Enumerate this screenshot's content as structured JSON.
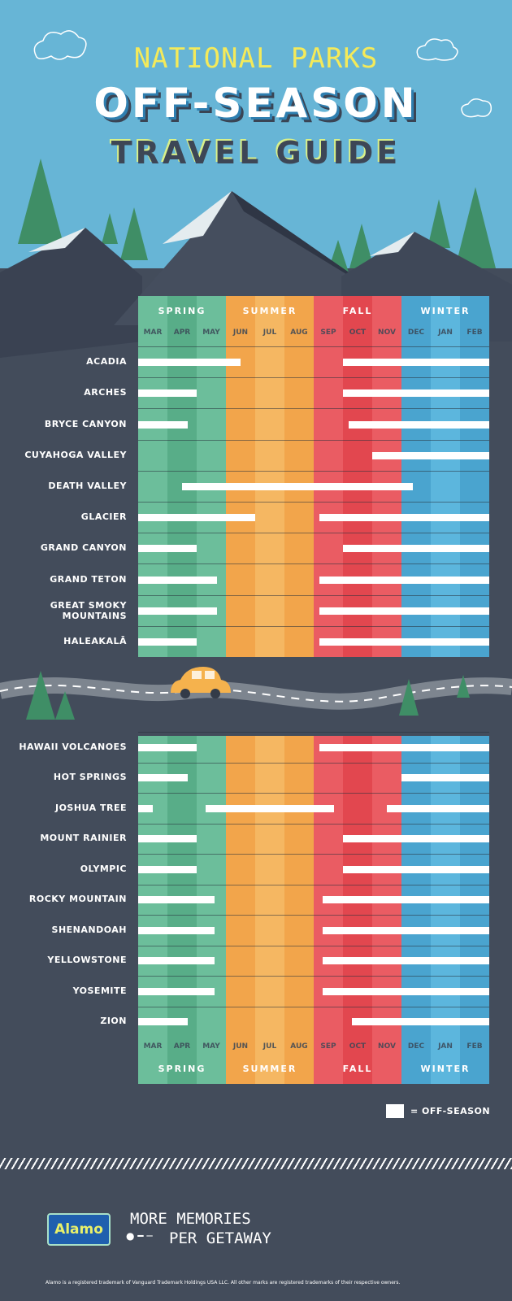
{
  "title": {
    "line1": "NATIONAL PARKS",
    "line2": "OFF-SEASON",
    "line3": "TRAVEL GUIDE"
  },
  "legend": {
    "label": "= OFF-SEASON"
  },
  "footer": {
    "logo": "Alamo",
    "slogan_line1": "MORE MEMORIES",
    "slogan_line2": "PER GETAWAY",
    "disclaimer": "Alamo is a registered trademark of Vanguard Trademark Holdings USA LLC.  All other marks are registered trademarks of their respective owners."
  },
  "colors": {
    "spring": "#6cbe9b",
    "spring_alt": "#58ad88",
    "summer": "#f2a54b",
    "summer_alt": "#f5b762",
    "fall": "#ea5c63",
    "fall_alt": "#e2474f",
    "winter": "#4aa4cf",
    "winter_alt": "#5cb6dd"
  },
  "chart_data": {
    "type": "gantt",
    "title": "National Parks Off-Season Travel Guide",
    "months": [
      "MAR",
      "APR",
      "MAY",
      "JUN",
      "JUL",
      "AUG",
      "SEP",
      "OCT",
      "NOV",
      "DEC",
      "JAN",
      "FEB"
    ],
    "seasons": [
      {
        "name": "SPRING",
        "months": 3
      },
      {
        "name": "SUMMER",
        "months": 3
      },
      {
        "name": "FALL",
        "months": 3
      },
      {
        "name": "WINTER",
        "months": 3
      }
    ],
    "units": "months from start of March (0 = Mar 1, 12 = end of Feb)",
    "legend": "white bar = off-season",
    "groups": [
      [
        {
          "park": "ACADIA",
          "segments": [
            [
              0,
              3.5
            ],
            [
              7,
              12
            ]
          ]
        },
        {
          "park": "ARCHES",
          "segments": [
            [
              0,
              2
            ],
            [
              7,
              12
            ]
          ]
        },
        {
          "park": "BRYCE CANYON",
          "segments": [
            [
              0,
              1.7
            ],
            [
              7.2,
              12
            ]
          ]
        },
        {
          "park": "CUYAHOGA VALLEY",
          "segments": [
            [
              8,
              12
            ]
          ]
        },
        {
          "park": "DEATH VALLEY",
          "segments": [
            [
              1.5,
              9.4
            ]
          ]
        },
        {
          "park": "GLACIER",
          "segments": [
            [
              0,
              4
            ],
            [
              6.2,
              12
            ]
          ]
        },
        {
          "park": "GRAND CANYON",
          "segments": [
            [
              0,
              2
            ],
            [
              7,
              12
            ]
          ]
        },
        {
          "park": "GRAND TETON",
          "segments": [
            [
              0,
              2.7
            ],
            [
              6.2,
              12
            ]
          ]
        },
        {
          "park": "GREAT SMOKY MOUNTAINS",
          "segments": [
            [
              0,
              2.7
            ],
            [
              6.2,
              12
            ]
          ]
        },
        {
          "park": "HALEAKALĀ",
          "segments": [
            [
              0,
              2
            ],
            [
              6.2,
              12
            ]
          ]
        }
      ],
      [
        {
          "park": "HAWAII VOLCANOES",
          "segments": [
            [
              0,
              2
            ],
            [
              6.2,
              12
            ]
          ]
        },
        {
          "park": "HOT SPRINGS",
          "segments": [
            [
              0,
              1.7
            ],
            [
              9,
              12
            ]
          ]
        },
        {
          "park": "JOSHUA TREE",
          "segments": [
            [
              0,
              0.5
            ],
            [
              2.3,
              6.7
            ],
            [
              8.5,
              12
            ]
          ]
        },
        {
          "park": "MOUNT RAINIER",
          "segments": [
            [
              0,
              2
            ],
            [
              7,
              12
            ]
          ]
        },
        {
          "park": "OLYMPIC",
          "segments": [
            [
              0,
              2
            ],
            [
              7,
              12
            ]
          ]
        },
        {
          "park": "ROCKY MOUNTAIN",
          "segments": [
            [
              0,
              2.6
            ],
            [
              6.3,
              12
            ]
          ]
        },
        {
          "park": "SHENANDOAH",
          "segments": [
            [
              0,
              2.6
            ],
            [
              6.3,
              12
            ]
          ]
        },
        {
          "park": "YELLOWSTONE",
          "segments": [
            [
              0,
              2.6
            ],
            [
              6.3,
              12
            ]
          ]
        },
        {
          "park": "YOSEMITE",
          "segments": [
            [
              0,
              2.6
            ],
            [
              6.3,
              12
            ]
          ]
        },
        {
          "park": "ZION",
          "segments": [
            [
              0,
              1.7
            ],
            [
              7.3,
              12
            ]
          ]
        }
      ]
    ]
  }
}
